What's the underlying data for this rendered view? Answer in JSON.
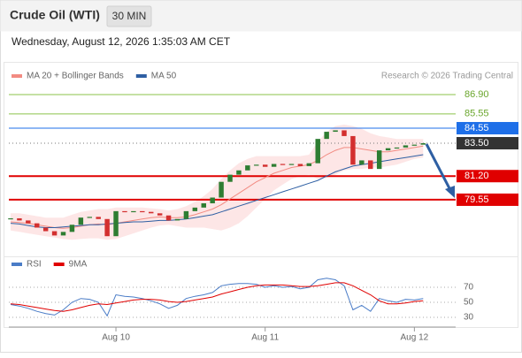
{
  "header": {
    "title": "Crude Oil (WTI)",
    "interval": "30 MIN",
    "timestamp": "Wednesday, August 12, 2026 1:35:03 AM CET",
    "credit": "Research © 2026 Trading Central"
  },
  "chart_data": [
    {
      "type": "candlestick",
      "xlim": [
        -0.2,
        50.7
      ],
      "ylim": [
        75.9,
        87.95
      ],
      "up_color": "#2e7d32",
      "down_color": "#d32f2f",
      "close": [
        78.25,
        78.1,
        77.9,
        77.6,
        77.35,
        77.05,
        77.3,
        77.8,
        78.3,
        78.35,
        78.2,
        77.0,
        78.75,
        78.7,
        78.75,
        78.7,
        78.6,
        78.45,
        78.1,
        78.2,
        78.75,
        79.0,
        79.3,
        79.7,
        80.8,
        81.3,
        81.6,
        81.95,
        82.0,
        81.85,
        82.05,
        82.0,
        82.05,
        81.9,
        82.1,
        83.8,
        84.3,
        84.4,
        84.0,
        82.0,
        82.3,
        81.7,
        83.0,
        83.15,
        83.2,
        83.35,
        83.4,
        83.5
      ],
      "series": [
        {
          "name": "MA 20 + Bollinger Bands",
          "color": "#f28b82",
          "band_color": "#fde0e0",
          "values": [
            78.0,
            77.95,
            77.9,
            77.8,
            77.7,
            77.6,
            77.55,
            77.6,
            77.7,
            77.8,
            77.85,
            77.8,
            77.9,
            78.0,
            78.1,
            78.2,
            78.3,
            78.35,
            78.3,
            78.3,
            78.35,
            78.5,
            78.7,
            78.9,
            79.2,
            79.6,
            80.0,
            80.4,
            80.8,
            81.1,
            81.4,
            81.6,
            81.8,
            81.9,
            82.0,
            82.3,
            82.7,
            83.0,
            83.2,
            83.2,
            83.1,
            83.0,
            82.9,
            82.9,
            83.0,
            83.1,
            83.2,
            83.3
          ],
          "upper": [
            78.6,
            78.6,
            78.5,
            78.4,
            78.3,
            78.3,
            78.3,
            78.5,
            78.7,
            78.8,
            78.9,
            78.9,
            79.0,
            79.0,
            79.0,
            79.0,
            78.95,
            78.9,
            78.8,
            78.9,
            79.1,
            79.4,
            79.8,
            80.3,
            81.0,
            81.6,
            82.1,
            82.4,
            82.6,
            82.6,
            82.6,
            82.6,
            82.6,
            82.6,
            82.7,
            83.6,
            84.3,
            84.7,
            84.8,
            84.7,
            84.5,
            84.2,
            84.0,
            83.9,
            83.8,
            83.8,
            83.8,
            83.8
          ],
          "lower": [
            77.4,
            77.3,
            77.2,
            77.1,
            77.0,
            76.9,
            76.8,
            76.75,
            76.8,
            76.85,
            76.85,
            76.75,
            76.8,
            77.0,
            77.2,
            77.4,
            77.6,
            77.75,
            77.8,
            77.7,
            77.6,
            77.6,
            77.6,
            77.5,
            77.4,
            77.6,
            77.9,
            78.4,
            79.0,
            79.6,
            80.2,
            80.6,
            81.0,
            81.2,
            81.3,
            81.0,
            81.1,
            81.3,
            81.6,
            81.7,
            81.7,
            81.8,
            81.8,
            81.9,
            82.0,
            82.2,
            82.4,
            82.5
          ]
        },
        {
          "name": "MA 50",
          "color": "#2e5fa3",
          "values": [
            77.9,
            77.85,
            77.75,
            77.65,
            77.6,
            77.6,
            77.65,
            77.7,
            77.75,
            77.8,
            77.8,
            77.85,
            77.9,
            77.95,
            78.0,
            78.0,
            78.05,
            78.1,
            78.1,
            78.15,
            78.2,
            78.3,
            78.4,
            78.5,
            78.7,
            78.9,
            79.1,
            79.3,
            79.5,
            79.7,
            79.9,
            80.1,
            80.3,
            80.5,
            80.7,
            80.9,
            81.2,
            81.5,
            81.7,
            81.9,
            82.0,
            82.1,
            82.2,
            82.3,
            82.4,
            82.5,
            82.6,
            82.7
          ]
        }
      ],
      "levels": [
        {
          "value": 86.9,
          "label": "86.90",
          "color": "#8bc34a",
          "filled": false
        },
        {
          "value": 85.55,
          "label": "85.55",
          "color": "#8bc34a",
          "filled": false
        },
        {
          "value": 84.55,
          "label": "84.55",
          "color": "#1e6fe8",
          "filled": true
        },
        {
          "value": 83.5,
          "label": "83.50",
          "color": "#333333",
          "filled": true,
          "dotted": true
        },
        {
          "value": 81.2,
          "label": "81.20",
          "color": "#e00000",
          "filled": true
        },
        {
          "value": 79.55,
          "label": "79.55",
          "color": "#e00000",
          "filled": true
        }
      ]
    },
    {
      "type": "line",
      "xlim": [
        -0.2,
        50.7
      ],
      "ylim": [
        17,
        87.6
      ],
      "yticks": [
        70,
        50,
        30
      ],
      "xticks": [
        {
          "value": 12,
          "label": "Aug 10"
        },
        {
          "value": 29,
          "label": "Aug 11"
        },
        {
          "value": 46,
          "label": "Aug 12"
        }
      ],
      "series": [
        {
          "name": "RSI",
          "color": "#4a7cc7",
          "values": [
            47,
            45,
            42,
            38,
            35,
            33,
            40,
            50,
            55,
            54,
            50,
            32,
            60,
            58,
            57,
            55,
            52,
            48,
            42,
            46,
            55,
            58,
            60,
            63,
            72,
            74,
            75,
            75,
            74,
            70,
            72,
            70,
            71,
            68,
            70,
            80,
            82,
            80,
            72,
            40,
            46,
            38,
            55,
            52,
            50,
            54,
            53,
            55
          ]
        },
        {
          "name": "9MA",
          "color": "#e00000",
          "values": [
            48,
            47,
            45,
            43,
            41,
            39,
            38,
            40,
            43,
            46,
            48,
            47,
            49,
            51,
            53,
            54,
            54,
            53,
            51,
            50,
            51,
            53,
            55,
            57,
            61,
            64,
            67,
            70,
            72,
            73,
            73,
            73,
            72,
            71,
            71,
            72,
            74,
            76,
            76,
            72,
            66,
            60,
            52,
            48,
            48,
            49,
            51,
            52
          ]
        }
      ]
    }
  ]
}
